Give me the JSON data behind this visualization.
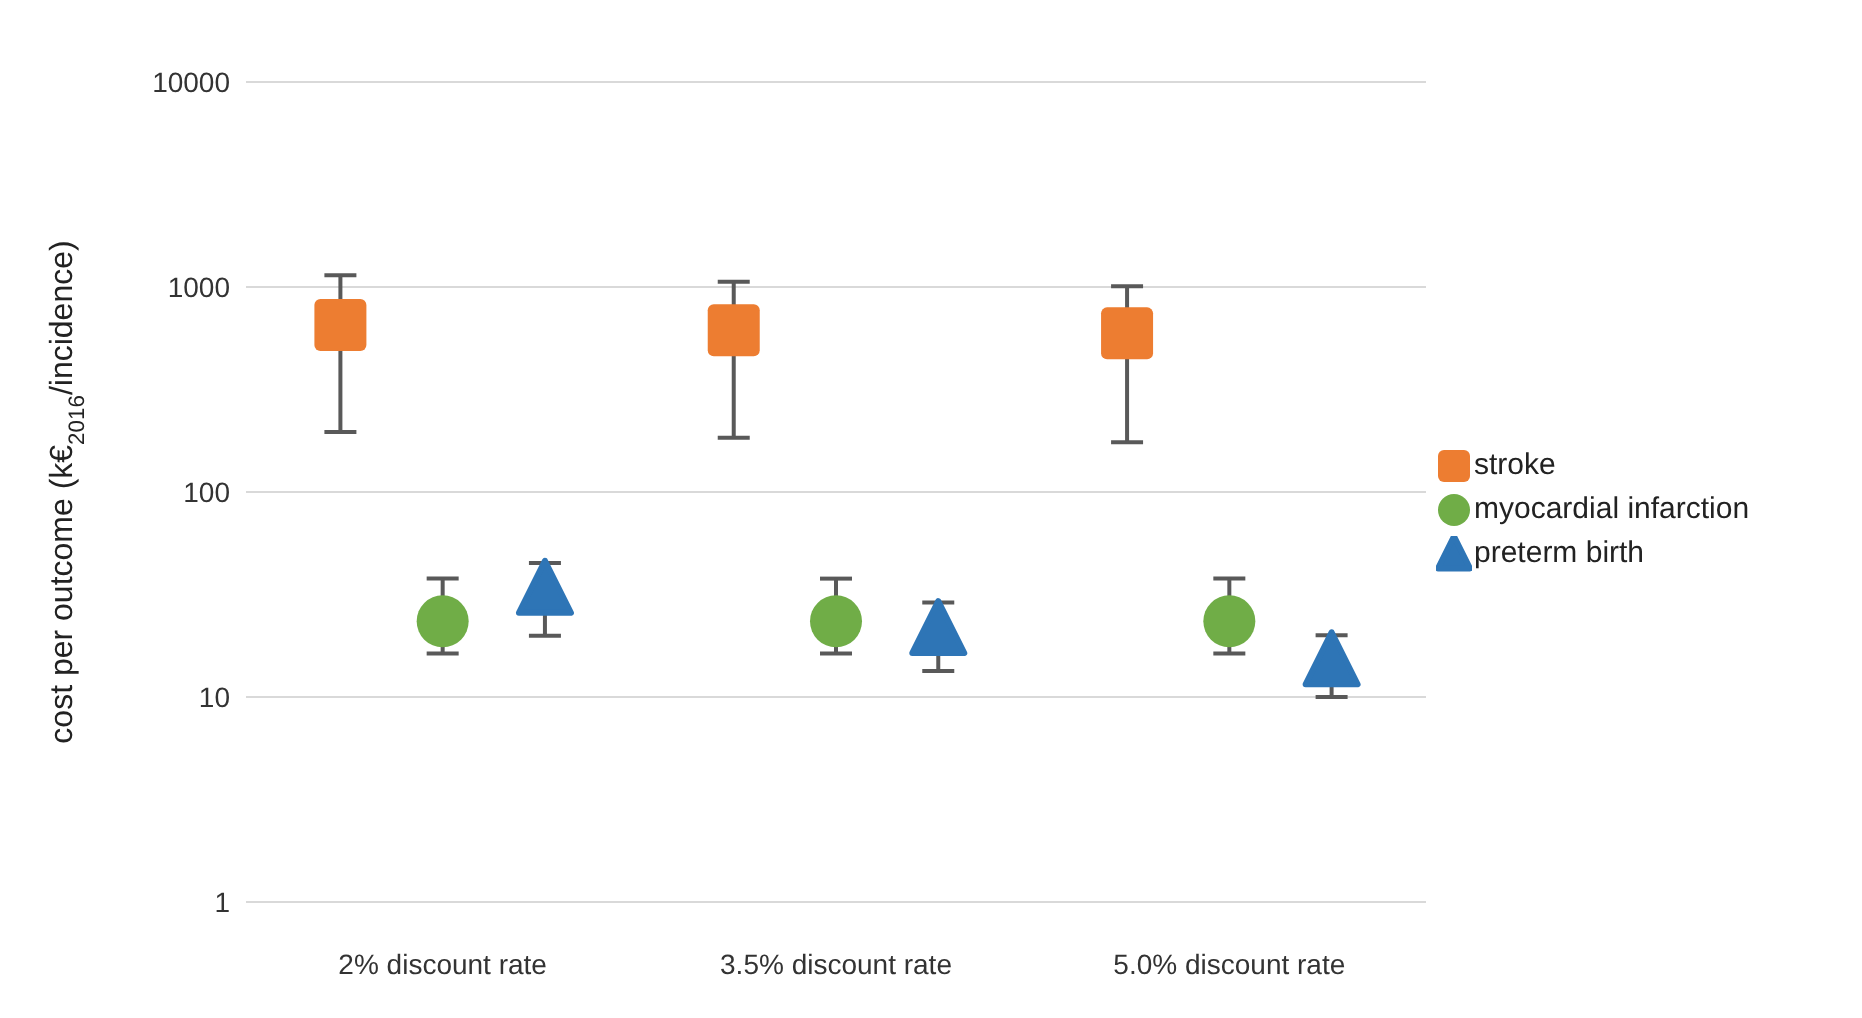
{
  "chart_data": {
    "type": "scatter",
    "ylabel": "cost per outcome (k€$_{2016}$/incidence)",
    "categories": [
      "2% discount rate",
      "3.5% discount rate",
      "5.0% discount rate"
    ],
    "series": [
      {
        "name": "stroke",
        "color": "#ed7d31",
        "marker": "square",
        "x": [
          "2% discount rate",
          "3.5% discount rate",
          "5.0% discount rate"
        ],
        "values": [
          653,
          615,
          594
        ],
        "errors": [
          [
            196,
            1140
          ],
          [
            184,
            1060
          ],
          [
            175,
            1008
          ]
        ]
      },
      {
        "name": "myocardial infarction",
        "color": "#70ad47",
        "marker": "circle",
        "x": [
          "2% discount rate",
          "3.5% discount rate",
          "5.0% discount rate"
        ],
        "values": [
          23.4,
          23.4,
          23.4
        ],
        "errors": [
          [
            16.3,
            37.8
          ],
          [
            16.3,
            37.8
          ],
          [
            16.3,
            37.8
          ]
        ]
      },
      {
        "name": "preterm birth",
        "color": "#2e75b6",
        "marker": "triangle",
        "x": [
          "2% discount rate",
          "3.5% discount rate",
          "5.0% discount rate"
        ],
        "values": [
          33.5,
          21.3,
          15
        ],
        "errors": [
          [
            19.9,
            45
          ],
          [
            13.4,
            28.9
          ],
          [
            10,
            20
          ]
        ]
      }
    ],
    "log": true,
    "ylim": [
      1,
      10000
    ],
    "yticks": [
      1,
      10,
      100,
      1000,
      10000
    ],
    "grid": "y",
    "legend": "right"
  }
}
